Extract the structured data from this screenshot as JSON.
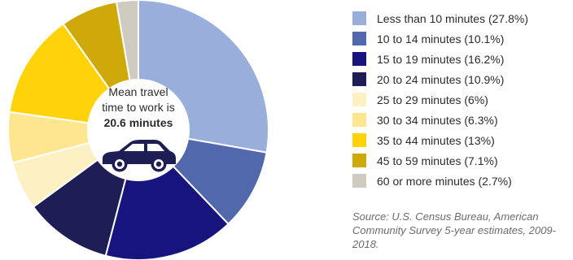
{
  "chart_data": {
    "type": "pie",
    "donut": true,
    "title": "",
    "center_label": {
      "line1": "Mean travel",
      "line2": "time to work is",
      "line3": "20.6 minutes"
    },
    "categories": [
      "Less than 10 minutes (27.8%)",
      "10 to 14 minutes (10.1%)",
      "15 to 19 minutes (16.2%)",
      "20 to 24 minutes (10.9%)",
      "25 to 29 minutes (6%)",
      "30 to 34 minutes (6.3%)",
      "35 to 44 minutes (13%)",
      "45 to 59 minutes (7.1%)",
      "60 or more minutes (2.7%)"
    ],
    "values": [
      27.8,
      10.1,
      16.2,
      10.9,
      6,
      6.3,
      13,
      7.1,
      2.7
    ],
    "colors": [
      "#9aaedb",
      "#5268ad",
      "#17147e",
      "#1e1d55",
      "#fdf1c4",
      "#fee58f",
      "#ffd20a",
      "#cfa80a",
      "#cfcbc1"
    ],
    "legend_position": "right",
    "source": "Source: U.S. Census Bureau, American Community Survey 5-year estimates, 2009-2018.",
    "icon": "car-icon",
    "icon_color": "#1e1d55"
  }
}
